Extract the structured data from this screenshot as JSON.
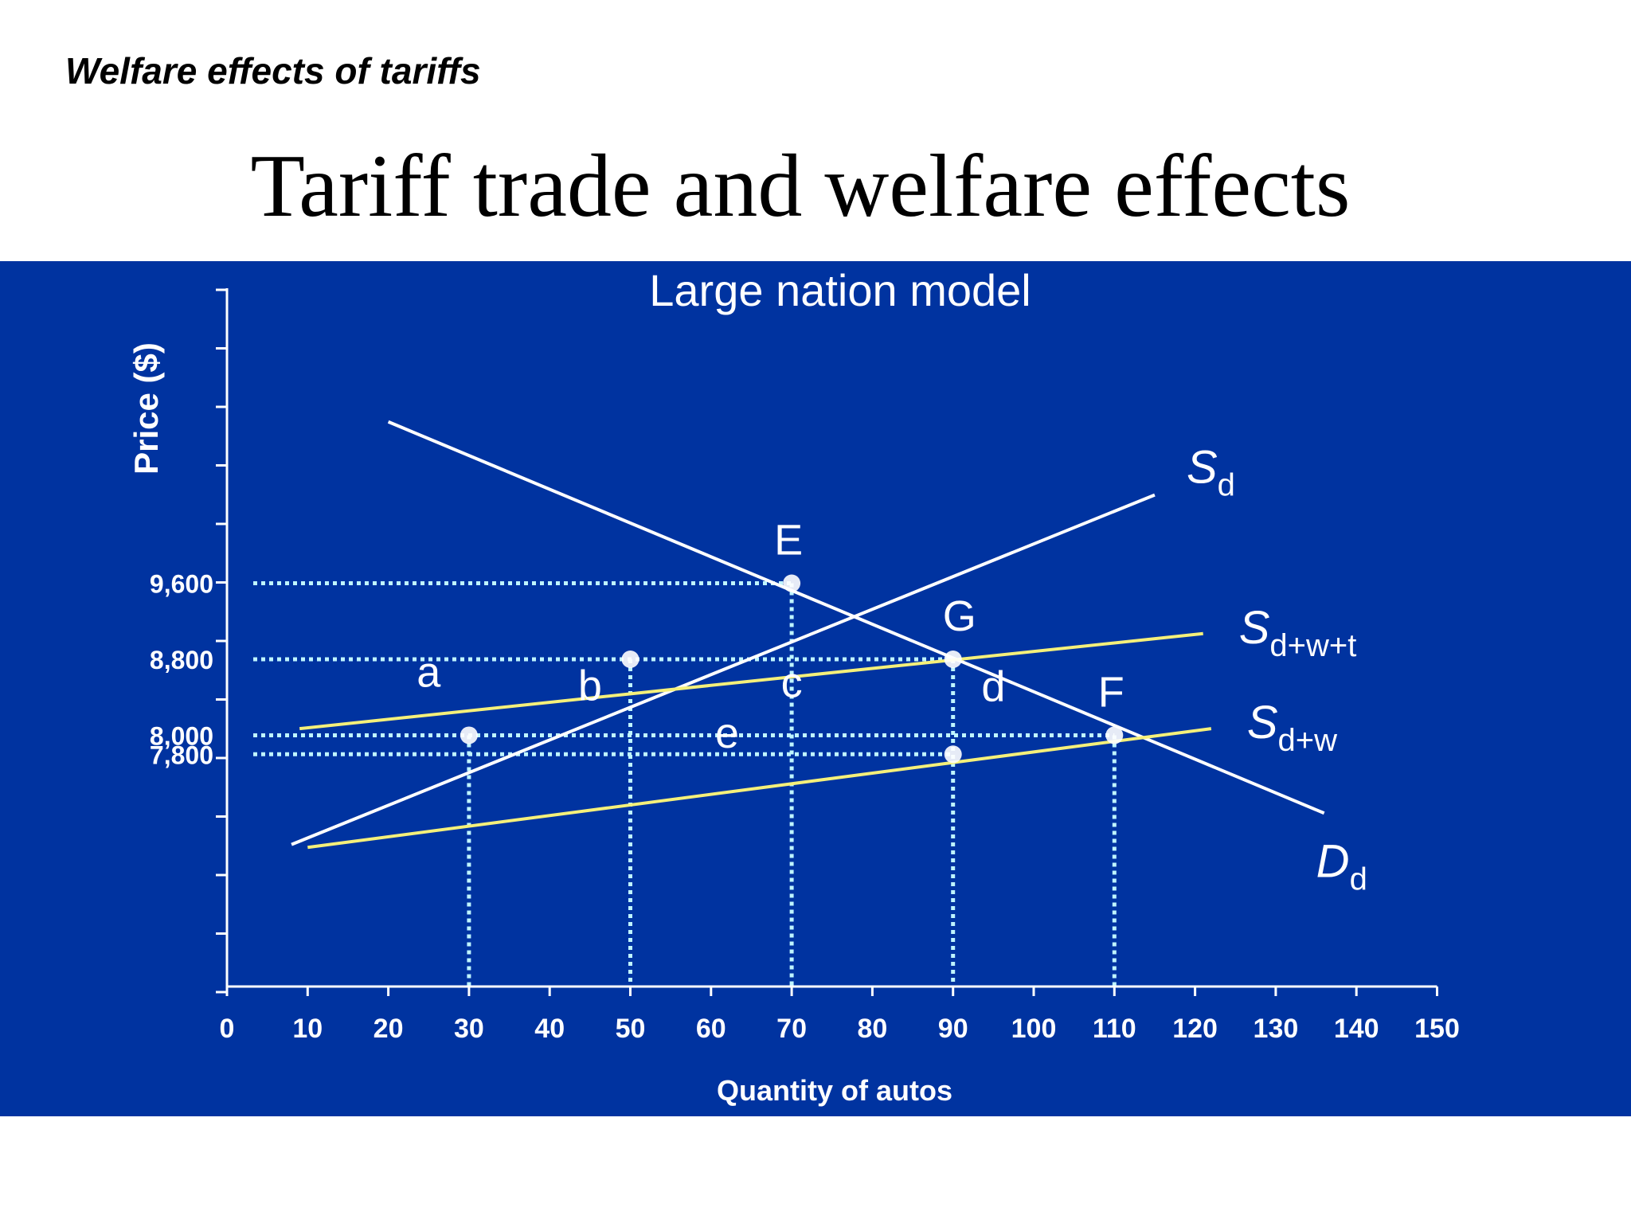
{
  "slide": {
    "subtitle": "Welfare effects of tariffs",
    "title": "Tariff trade and welfare effects"
  },
  "chart_data": {
    "type": "line",
    "title": "Large nation model",
    "xlabel": "Quantity of autos",
    "ylabel": "Price ($)",
    "xlim": [
      0,
      150
    ],
    "x_ticks": [
      "0",
      "10",
      "20",
      "30",
      "40",
      "50",
      "60",
      "70",
      "80",
      "90",
      "100",
      "110",
      "120",
      "130",
      "140",
      "150"
    ],
    "y_tick_labels": [
      {
        "value": 9600,
        "label": "9,600"
      },
      {
        "value": 8800,
        "label": "8,800"
      },
      {
        "value": 8000,
        "label": "8,000"
      },
      {
        "value": 7800,
        "label": "7,800"
      }
    ],
    "colors": {
      "background": "#0033a0",
      "main": "#ffffff",
      "trade_supply": "#f5f07a",
      "guides": "#bff5ff"
    },
    "series": [
      {
        "name": "D",
        "sub": "d",
        "role": "demand",
        "color": "#ffffff",
        "points": [
          [
            20,
            11300
          ],
          [
            136,
            7180
          ]
        ]
      },
      {
        "name": "S",
        "sub": "d",
        "role": "domestic supply",
        "color": "#ffffff",
        "points": [
          [
            8,
            6850
          ],
          [
            115,
            10530
          ]
        ]
      },
      {
        "name": "S",
        "sub": "d+w+t",
        "role": "supply with tariff",
        "color": "#f5f07a",
        "points": [
          [
            9,
            8070
          ],
          [
            121,
            9070
          ]
        ]
      },
      {
        "name": "S",
        "sub": "d+w",
        "role": "free-trade supply",
        "color": "#f5f07a",
        "points": [
          [
            10,
            6820
          ],
          [
            122,
            8070
          ]
        ]
      }
    ],
    "points": [
      {
        "label": "E",
        "x": 70,
        "y": 9600,
        "label_pos": "above"
      },
      {
        "label": "G",
        "x": 90,
        "y": 8800,
        "label_pos": "above"
      },
      {
        "label": "F",
        "x": 110,
        "y": 8000,
        "label_pos": "above"
      },
      {
        "label": "",
        "x": 30,
        "y": 8000
      },
      {
        "label": "",
        "x": 50,
        "y": 8800
      },
      {
        "label": "",
        "x": 90,
        "y": 7800
      }
    ],
    "guides": {
      "horizontal": [
        {
          "y": 9600,
          "x_to": 70
        },
        {
          "y": 8800,
          "x_to": 90
        },
        {
          "y": 8000,
          "x_to": 110
        },
        {
          "y": 7800,
          "x_to": 90
        }
      ],
      "vertical": [
        {
          "x": 30,
          "y_from": 8000
        },
        {
          "x": 50,
          "y_from": 8800
        },
        {
          "x": 70,
          "y_from": 9600
        },
        {
          "x": 90,
          "y_from": 8800
        },
        {
          "x": 110,
          "y_from": 8000
        }
      ]
    },
    "area_labels": [
      {
        "label": "a",
        "x": 25,
        "y": 8510
      },
      {
        "label": "b",
        "x": 45,
        "y": 8370
      },
      {
        "label": "c",
        "x": 70,
        "y": 8400
      },
      {
        "label": "d",
        "x": 95,
        "y": 8360
      },
      {
        "label": "e",
        "x": 62,
        "y": 7870
      }
    ]
  }
}
